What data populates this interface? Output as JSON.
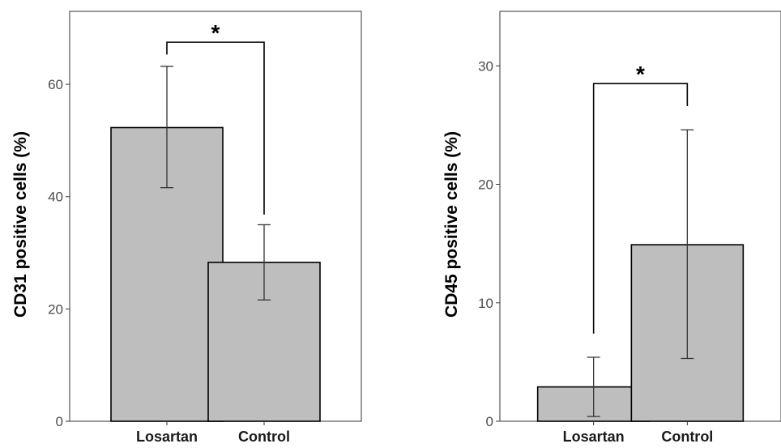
{
  "chart_data": [
    {
      "type": "bar",
      "categories": [
        "Losartan",
        "Control"
      ],
      "values": [
        52.3,
        28.3
      ],
      "error_low": [
        41.6,
        21.6
      ],
      "error_high": [
        63.2,
        35.0
      ],
      "ylabel": "CD31 positive cells (%)",
      "ylim": [
        0,
        73
      ],
      "yticks": [
        0,
        20,
        40,
        60
      ],
      "ytick_labels": [
        "0",
        "20",
        "40",
        "60"
      ],
      "significance": {
        "label": "*",
        "between": [
          "Losartan",
          "Control"
        ],
        "bracket_y": 67.5,
        "left_leg_end": 65.3,
        "right_leg_end": 36.8
      },
      "bar_color": "#bebebe",
      "grid": false
    },
    {
      "type": "bar",
      "categories": [
        "Losartan",
        "Control"
      ],
      "values": [
        2.9,
        14.9
      ],
      "error_low": [
        0.4,
        5.3
      ],
      "error_high": [
        5.4,
        24.6
      ],
      "ylabel": "CD45 positive cells (%)",
      "ylim": [
        0,
        34.6
      ],
      "yticks": [
        0,
        10,
        20,
        30
      ],
      "ytick_labels": [
        "0",
        "10",
        "20",
        "30"
      ],
      "significance": {
        "label": "*",
        "between": [
          "Losartan",
          "Control"
        ],
        "bracket_y": 28.5,
        "left_leg_end": 7.4,
        "right_leg_end": 26.6
      },
      "bar_color": "#bebebe",
      "grid": false
    }
  ]
}
